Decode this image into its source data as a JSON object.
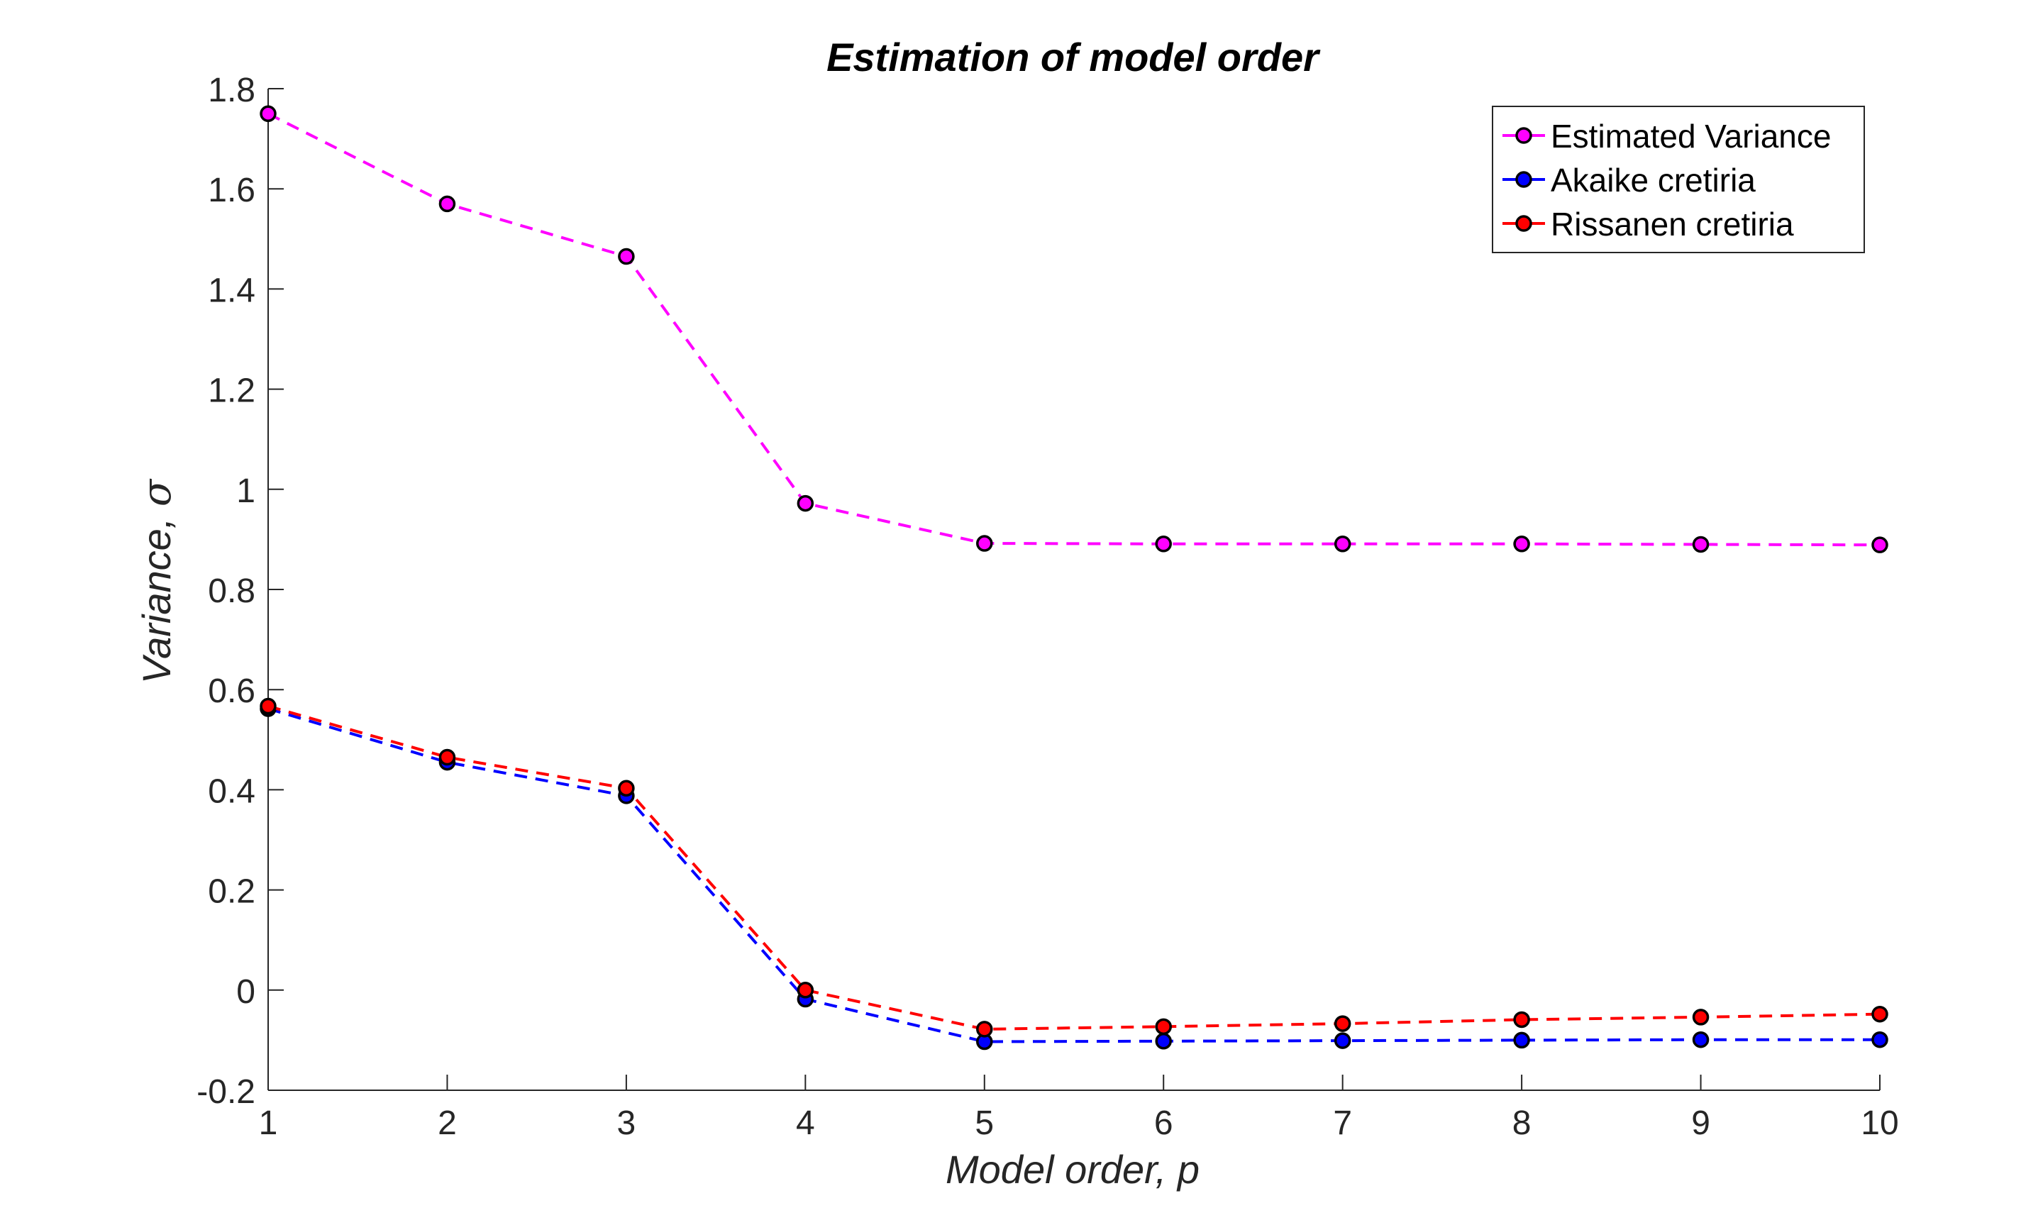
{
  "chart_data": {
    "type": "line",
    "title": "Estimation of model order",
    "xlabel": "Model order, p",
    "ylabel_text": "Variance, ",
    "ylabel_symbol": "σ",
    "xlim": [
      1,
      10
    ],
    "ylim": [
      -0.2,
      1.8
    ],
    "xticks": [
      1,
      2,
      3,
      4,
      5,
      6,
      7,
      8,
      9,
      10
    ],
    "xtick_labels": [
      "1",
      "2",
      "3",
      "4",
      "5",
      "6",
      "7",
      "8",
      "9",
      "10"
    ],
    "yticks": [
      -0.2,
      0,
      0.2,
      0.4,
      0.6,
      0.8,
      1,
      1.2,
      1.4,
      1.6,
      1.8
    ],
    "ytick_labels": [
      "-0.2",
      "0",
      "0.2",
      "0.4",
      "0.6",
      "0.8",
      "1",
      "1.2",
      "1.4",
      "1.6",
      "1.8"
    ],
    "grid": false,
    "legend_position": "top-right",
    "line_style": "dashed",
    "marker_edge_color": "#000000",
    "x": [
      1,
      2,
      3,
      4,
      5,
      6,
      7,
      8,
      9,
      10
    ],
    "series": [
      {
        "name": "Estimated Variance",
        "color": "#ff00ff",
        "values": [
          1.75,
          1.57,
          1.465,
          0.972,
          0.892,
          0.891,
          0.891,
          0.891,
          0.89,
          0.889
        ]
      },
      {
        "name": "Akaike cretiria",
        "color": "#0000ff",
        "values": [
          0.562,
          0.455,
          0.388,
          -0.018,
          -0.103,
          -0.102,
          -0.101,
          -0.1,
          -0.099,
          -0.099
        ]
      },
      {
        "name": "Rissanen cretiria",
        "color": "#ff0000",
        "values": [
          0.567,
          0.465,
          0.403,
          0.0,
          -0.078,
          -0.073,
          -0.067,
          -0.059,
          -0.054,
          -0.048
        ]
      }
    ]
  }
}
